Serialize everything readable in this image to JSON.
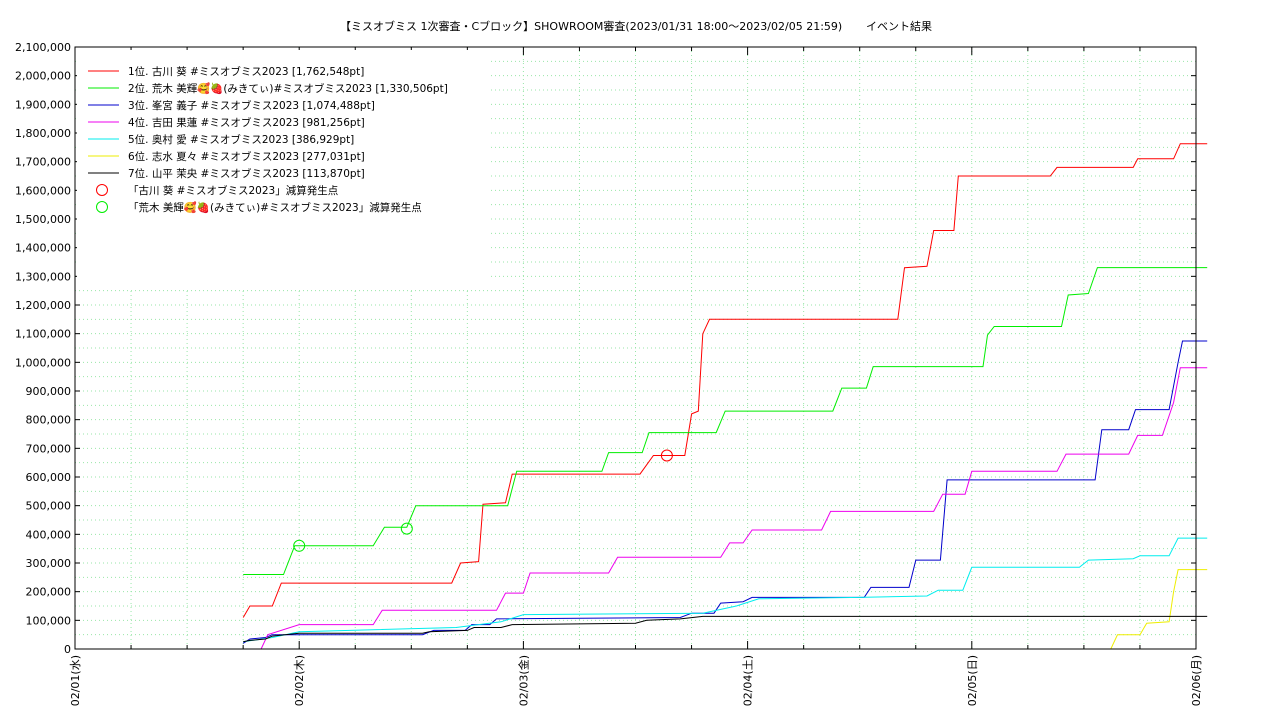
{
  "chart_data": {
    "type": "line",
    "title": "【ミスオブミス 1次審査・Cブロック】SHOWROOM審査(2023/01/31 18:00～2023/02/05 21:59)",
    "subtitle": "イベント結果",
    "xlabel": "",
    "ylabel": "",
    "x_range": [
      0,
      5.0
    ],
    "ylim": [
      0,
      2100000
    ],
    "grid": true,
    "legend_position": "top-left",
    "x_tick_labels": [
      "02/01(水)",
      "02/02(木)",
      "02/03(金)",
      "02/04(土)",
      "02/05(日)",
      "02/06(月)"
    ],
    "x_tick_values": [
      0,
      1,
      2,
      3,
      4,
      5
    ],
    "y_tick_values": [
      0,
      100000,
      200000,
      300000,
      400000,
      500000,
      600000,
      700000,
      800000,
      900000,
      1000000,
      1100000,
      1200000,
      1300000,
      1400000,
      1500000,
      1600000,
      1700000,
      1800000,
      1900000,
      2000000,
      2100000
    ],
    "y_tick_labels": [
      "0",
      "100,000",
      "200,000",
      "300,000",
      "400,000",
      "500,000",
      "600,000",
      "700,000",
      "800,000",
      "900,000",
      "1,000,000",
      "1,100,000",
      "1,200,000",
      "1,300,000",
      "1,400,000",
      "1,500,000",
      "1,600,000",
      "1,700,000",
      "1,800,000",
      "1,900,000",
      "2,000,000",
      "2,100,000"
    ],
    "series": [
      {
        "name": "1位. 古川 葵 #ミスオブミス2023 [1,762,548pt]",
        "color": "#ff0000",
        "points": [
          [
            0.75,
            110000
          ],
          [
            0.78,
            150000
          ],
          [
            0.88,
            150000
          ],
          [
            0.92,
            230000
          ],
          [
            1.68,
            230000
          ],
          [
            1.72,
            300000
          ],
          [
            1.8,
            305000
          ],
          [
            1.82,
            505000
          ],
          [
            1.92,
            510000
          ],
          [
            1.95,
            610000
          ],
          [
            2.52,
            610000
          ],
          [
            2.58,
            675000
          ],
          [
            2.72,
            675000
          ],
          [
            2.75,
            820000
          ],
          [
            2.78,
            830000
          ],
          [
            2.8,
            1100000
          ],
          [
            2.83,
            1150000
          ],
          [
            3.67,
            1150000
          ],
          [
            3.7,
            1330000
          ],
          [
            3.8,
            1335000
          ],
          [
            3.83,
            1460000
          ],
          [
            3.92,
            1460000
          ],
          [
            3.94,
            1650000
          ],
          [
            4.35,
            1650000
          ],
          [
            4.38,
            1680000
          ],
          [
            4.72,
            1680000
          ],
          [
            4.74,
            1710000
          ],
          [
            4.9,
            1710000
          ],
          [
            4.93,
            1762548
          ],
          [
            5.05,
            1762548
          ]
        ]
      },
      {
        "name": "2位. 荒木 美輝🥰🍓(みきてぃ)#ミスオブミス2023 [1,330,506pt]",
        "color": "#00ee00",
        "points": [
          [
            0.75,
            260000
          ],
          [
            0.93,
            260000
          ],
          [
            0.98,
            360000
          ],
          [
            1.33,
            360000
          ],
          [
            1.38,
            425000
          ],
          [
            1.48,
            425000
          ],
          [
            1.52,
            500000
          ],
          [
            1.93,
            500000
          ],
          [
            1.97,
            620000
          ],
          [
            2.35,
            620000
          ],
          [
            2.38,
            685000
          ],
          [
            2.53,
            685000
          ],
          [
            2.56,
            755000
          ],
          [
            2.86,
            755000
          ],
          [
            2.9,
            830000
          ],
          [
            3.38,
            830000
          ],
          [
            3.42,
            910000
          ],
          [
            3.53,
            910000
          ],
          [
            3.56,
            985000
          ],
          [
            4.05,
            985000
          ],
          [
            4.07,
            1095000
          ],
          [
            4.1,
            1125000
          ],
          [
            4.4,
            1125000
          ],
          [
            4.43,
            1235000
          ],
          [
            4.52,
            1240000
          ],
          [
            4.56,
            1330506
          ],
          [
            5.05,
            1330506
          ]
        ]
      },
      {
        "name": "3位. 峯宮 義子 #ミスオブミス2023 [1,074,488pt]",
        "color": "#0000cc",
        "points": [
          [
            0.75,
            20000
          ],
          [
            0.78,
            35000
          ],
          [
            0.85,
            40000
          ],
          [
            0.88,
            50000
          ],
          [
            1.55,
            50000
          ],
          [
            1.6,
            65000
          ],
          [
            1.74,
            65000
          ],
          [
            1.77,
            85000
          ],
          [
            1.85,
            85000
          ],
          [
            1.88,
            105000
          ],
          [
            2.7,
            110000
          ],
          [
            2.75,
            125000
          ],
          [
            2.85,
            125000
          ],
          [
            2.88,
            160000
          ],
          [
            2.98,
            165000
          ],
          [
            3.02,
            180000
          ],
          [
            3.52,
            180000
          ],
          [
            3.55,
            215000
          ],
          [
            3.72,
            215000
          ],
          [
            3.75,
            310000
          ],
          [
            3.86,
            310000
          ],
          [
            3.89,
            590000
          ],
          [
            4.55,
            590000
          ],
          [
            4.58,
            765000
          ],
          [
            4.7,
            765000
          ],
          [
            4.73,
            835000
          ],
          [
            4.88,
            835000
          ],
          [
            4.92,
            1000000
          ],
          [
            4.94,
            1074488
          ],
          [
            5.05,
            1074488
          ]
        ]
      },
      {
        "name": "4位. 吉田 果蓮 #ミスオブミス2023 [981,256pt]",
        "color": "#ee00ee",
        "points": [
          [
            0.83,
            0
          ],
          [
            0.86,
            50000
          ],
          [
            1.0,
            85000
          ],
          [
            1.33,
            85000
          ],
          [
            1.37,
            135000
          ],
          [
            1.88,
            135000
          ],
          [
            1.92,
            195000
          ],
          [
            2.0,
            195000
          ],
          [
            2.03,
            265000
          ],
          [
            2.38,
            265000
          ],
          [
            2.42,
            320000
          ],
          [
            2.88,
            320000
          ],
          [
            2.92,
            370000
          ],
          [
            2.98,
            370000
          ],
          [
            3.02,
            415000
          ],
          [
            3.33,
            415000
          ],
          [
            3.37,
            480000
          ],
          [
            3.83,
            480000
          ],
          [
            3.87,
            540000
          ],
          [
            3.97,
            540000
          ],
          [
            4.0,
            620000
          ],
          [
            4.38,
            620000
          ],
          [
            4.42,
            680000
          ],
          [
            4.7,
            680000
          ],
          [
            4.74,
            745000
          ],
          [
            4.85,
            745000
          ],
          [
            4.9,
            860000
          ],
          [
            4.93,
            981256
          ],
          [
            5.05,
            981256
          ]
        ]
      },
      {
        "name": "5位. 奥村 愛 #ミスオブミス2023 [386,929pt]",
        "color": "#00eeee",
        "points": [
          [
            0.75,
            25000
          ],
          [
            0.88,
            40000
          ],
          [
            1.0,
            60000
          ],
          [
            1.7,
            75000
          ],
          [
            1.9,
            95000
          ],
          [
            2.0,
            120000
          ],
          [
            2.8,
            125000
          ],
          [
            2.95,
            150000
          ],
          [
            3.05,
            175000
          ],
          [
            3.5,
            180000
          ],
          [
            3.8,
            185000
          ],
          [
            3.85,
            205000
          ],
          [
            3.96,
            205000
          ],
          [
            4.0,
            285000
          ],
          [
            4.48,
            285000
          ],
          [
            4.52,
            310000
          ],
          [
            4.72,
            315000
          ],
          [
            4.75,
            325000
          ],
          [
            4.88,
            325000
          ],
          [
            4.92,
            386929
          ],
          [
            5.05,
            386929
          ]
        ]
      },
      {
        "name": "6位. 志水 夏々 #ミスオブミス2023 [277,031pt]",
        "color": "#eeee00",
        "points": [
          [
            4.62,
            0
          ],
          [
            4.65,
            50000
          ],
          [
            4.75,
            50000
          ],
          [
            4.78,
            90000
          ],
          [
            4.88,
            95000
          ],
          [
            4.9,
            200000
          ],
          [
            4.92,
            277031
          ],
          [
            5.05,
            277031
          ]
        ]
      },
      {
        "name": "7位. 山平 茉央 #ミスオブミス2023 [113,870pt]",
        "color": "#000000",
        "points": [
          [
            0.75,
            25000
          ],
          [
            0.78,
            30000
          ],
          [
            0.85,
            35000
          ],
          [
            0.88,
            45000
          ],
          [
            1.0,
            55000
          ],
          [
            1.55,
            55000
          ],
          [
            1.58,
            60000
          ],
          [
            1.75,
            65000
          ],
          [
            1.78,
            75000
          ],
          [
            1.9,
            75000
          ],
          [
            1.95,
            85000
          ],
          [
            2.5,
            90000
          ],
          [
            2.55,
            100000
          ],
          [
            2.7,
            105000
          ],
          [
            2.8,
            113870
          ],
          [
            5.05,
            113870
          ]
        ]
      }
    ],
    "markers": [
      {
        "name": "「古川 葵 #ミスオブミス2023」減算発生点",
        "color": "#ff0000",
        "points": [
          [
            2.64,
            675000
          ]
        ]
      },
      {
        "name": "「荒木 美輝🥰🍓(みきてぃ)#ミスオブミス2023」減算発生点",
        "color": "#00ee00",
        "points": [
          [
            1.0,
            360000
          ],
          [
            1.48,
            420000
          ]
        ]
      }
    ]
  }
}
